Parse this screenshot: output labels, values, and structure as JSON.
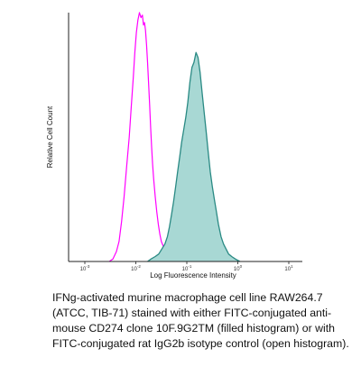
{
  "chart_data": {
    "type": "area",
    "title": "",
    "xlabel": "Log Fluorescence Intensity",
    "ylabel": "Relative Cell Count",
    "x_scale": "log",
    "x_ticks": [
      {
        "base": "10",
        "exp": "-3"
      },
      {
        "base": "10",
        "exp": "-2"
      },
      {
        "base": "10",
        "exp": "-1"
      },
      {
        "base": "10",
        "exp": "0"
      },
      {
        "base": "10",
        "exp": "1"
      }
    ],
    "grid": false,
    "legend": "none",
    "series": [
      {
        "style": "open outline",
        "color": "#ff00ff",
        "x": [
          -2.52,
          -2.45,
          -2.38,
          -2.33,
          -2.28,
          -2.23,
          -2.18,
          -2.13,
          -2.09,
          -2.05,
          -2.02,
          -1.99,
          -1.96,
          -1.93,
          -1.9,
          -1.87,
          -1.85,
          -1.83,
          -1.81,
          -1.79,
          -1.77,
          -1.75,
          -1.73,
          -1.71,
          -1.69,
          -1.67,
          -1.65,
          -1.62,
          -1.59,
          -1.56,
          -1.53,
          -1.5,
          -1.46,
          -1.42,
          -1.38,
          -1.33,
          -1.27,
          -1.2,
          -1.12
        ],
        "y": [
          0.0,
          0.01,
          0.04,
          0.08,
          0.16,
          0.26,
          0.38,
          0.5,
          0.62,
          0.74,
          0.84,
          0.92,
          0.97,
          1.0,
          0.98,
          0.99,
          0.95,
          0.96,
          0.93,
          0.87,
          0.8,
          0.72,
          0.63,
          0.54,
          0.46,
          0.39,
          0.33,
          0.26,
          0.2,
          0.15,
          0.11,
          0.08,
          0.06,
          0.04,
          0.03,
          0.02,
          0.01,
          0.005,
          0.0
        ]
      },
      {
        "style": "filled histogram",
        "color": "#2a8a84",
        "fill": "#a8d8d4",
        "x": [
          -1.77,
          -1.7,
          -1.62,
          -1.55,
          -1.49,
          -1.43,
          -1.38,
          -1.34,
          -1.3,
          -1.26,
          -1.22,
          -1.18,
          -1.14,
          -1.1,
          -1.06,
          -1.02,
          -0.98,
          -0.94,
          -0.9,
          -0.86,
          -0.82,
          -0.78,
          -0.74,
          -0.7,
          -0.66,
          -0.62,
          -0.58,
          -0.54,
          -0.5,
          -0.46,
          -0.42,
          -0.38,
          -0.33,
          -0.28,
          -0.23,
          -0.18,
          -0.12,
          -0.05,
          0.04
        ],
        "y": [
          0.0,
          0.01,
          0.02,
          0.03,
          0.05,
          0.07,
          0.1,
          0.14,
          0.19,
          0.24,
          0.3,
          0.36,
          0.42,
          0.48,
          0.53,
          0.58,
          0.64,
          0.72,
          0.78,
          0.8,
          0.84,
          0.82,
          0.76,
          0.68,
          0.6,
          0.52,
          0.44,
          0.36,
          0.3,
          0.25,
          0.2,
          0.15,
          0.1,
          0.07,
          0.05,
          0.03,
          0.02,
          0.01,
          0.0
        ]
      }
    ]
  },
  "caption": "IFNg-activated murine macrophage cell line RAW264.7 (ATCC, TIB-71) stained with either FITC-conjugated anti-mouse CD274 clone 10F.9G2TM (filled histogram) or with FITC-conjugated rat IgG2b isotype control (open histogram)."
}
